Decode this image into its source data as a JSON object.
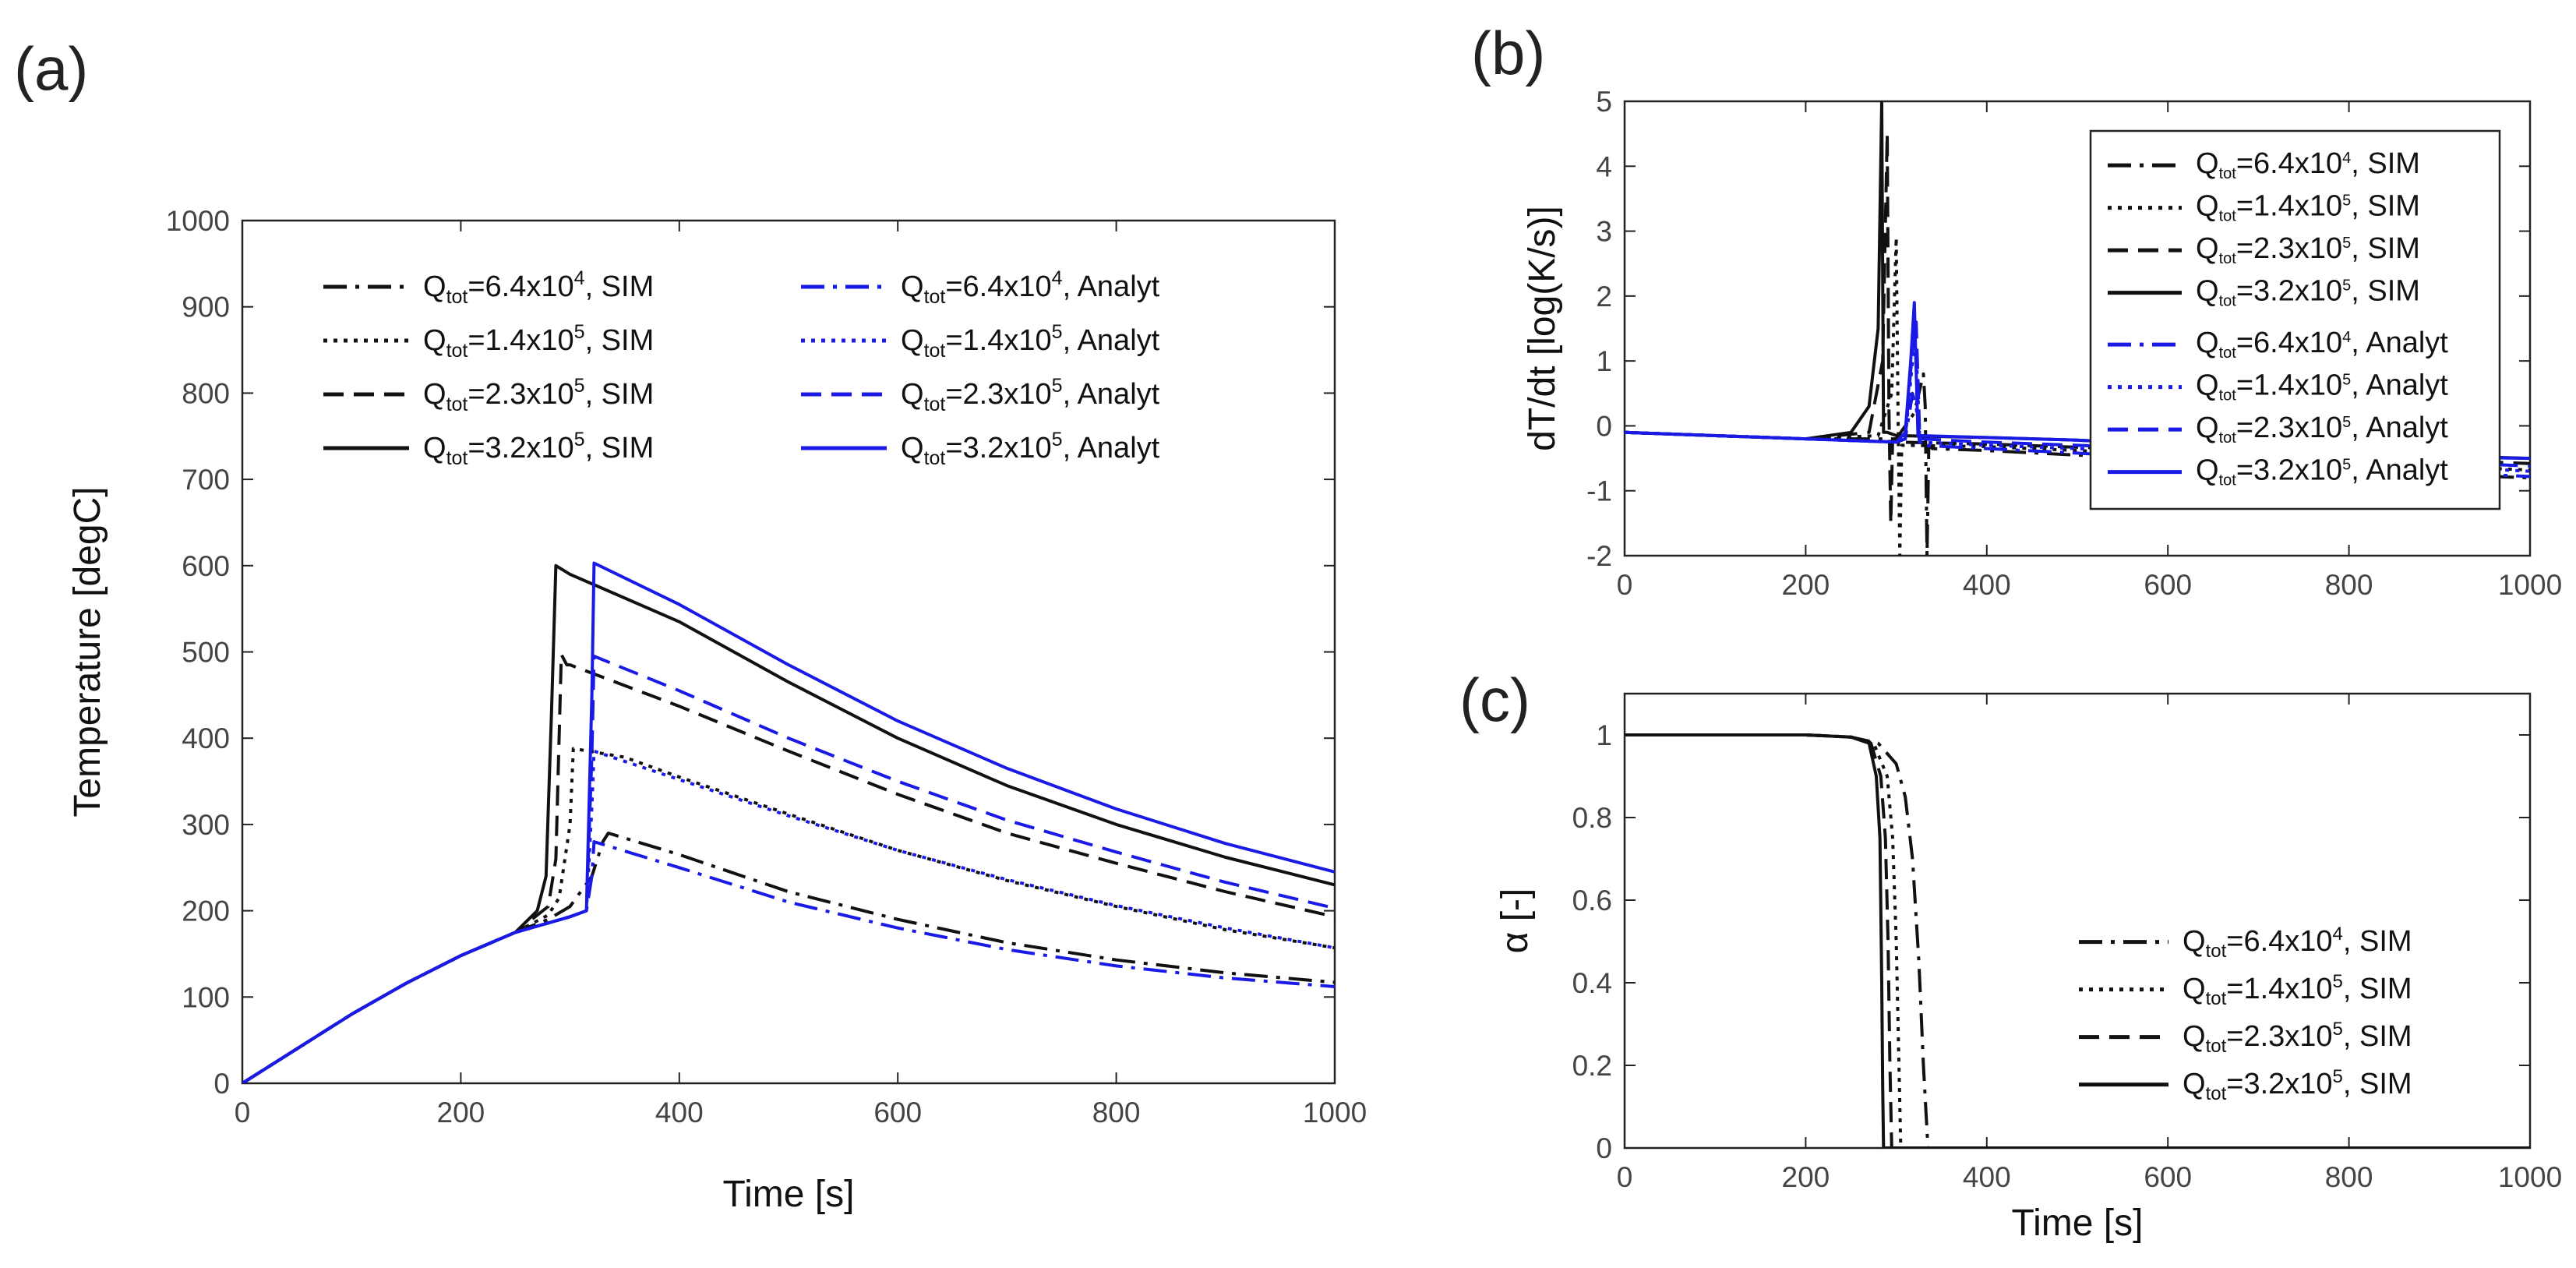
{
  "chart_data": [
    {
      "panel_label": "(a)",
      "type": "line",
      "xlabel": "Time [s]",
      "ylabel": "Temperature [degC]",
      "xlim": [
        0,
        1000
      ],
      "ylim": [
        0,
        1000
      ],
      "xticks": [
        "0",
        "200",
        "400",
        "600",
        "800",
        "1000"
      ],
      "yticks": [
        "0",
        "100",
        "200",
        "300",
        "400",
        "500",
        "600",
        "700",
        "800",
        "900",
        "1000"
      ],
      "grid": false,
      "legend_position": "top, two columns",
      "series": [
        {
          "name": "Q_tot=6.4x10^4, SIM",
          "color": "#111111",
          "style": "dashdot",
          "x": [
            0,
            50,
            100,
            150,
            200,
            250,
            280,
            300,
            320,
            330,
            335,
            400,
            500,
            600,
            700,
            800,
            900,
            1000
          ],
          "y": [
            0,
            40,
            80,
            116,
            148,
            175,
            190,
            205,
            240,
            280,
            290,
            265,
            222,
            190,
            163,
            143,
            128,
            117
          ]
        },
        {
          "name": "Q_tot=1.4x10^5, SIM",
          "color": "#111111",
          "style": "dotted",
          "x": [
            0,
            50,
            100,
            150,
            200,
            250,
            280,
            290,
            300,
            303,
            350,
            400,
            500,
            600,
            700,
            800,
            900,
            1000
          ],
          "y": [
            0,
            40,
            80,
            116,
            148,
            175,
            195,
            215,
            300,
            388,
            378,
            355,
            312,
            270,
            235,
            205,
            178,
            157
          ]
        },
        {
          "name": "Q_tot=2.3x10^5, SIM",
          "color": "#111111",
          "style": "dashed",
          "x": [
            0,
            50,
            100,
            150,
            200,
            250,
            280,
            287,
            292,
            297,
            300,
            400,
            500,
            600,
            700,
            800,
            900,
            1000
          ],
          "y": [
            0,
            40,
            80,
            116,
            148,
            175,
            205,
            260,
            497,
            485,
            485,
            437,
            385,
            335,
            290,
            255,
            222,
            193
          ]
        },
        {
          "name": "Q_tot=3.2x10^5, SIM",
          "color": "#111111",
          "style": "solid",
          "x": [
            0,
            50,
            100,
            150,
            200,
            250,
            270,
            278,
            283,
            287,
            300,
            400,
            500,
            600,
            700,
            800,
            900,
            1000
          ],
          "y": [
            0,
            40,
            80,
            116,
            148,
            175,
            200,
            240,
            430,
            600,
            590,
            535,
            465,
            400,
            345,
            300,
            262,
            230
          ]
        },
        {
          "name": "Q_tot=6.4x10^4, Analyt",
          "color": "#1a1ae6",
          "style": "dashdot",
          "x": [
            0,
            50,
            100,
            150,
            200,
            250,
            300,
            315,
            320,
            322,
            400,
            500,
            600,
            700,
            800,
            900,
            1000
          ],
          "y": [
            0,
            40,
            80,
            116,
            148,
            175,
            193,
            200,
            240,
            280,
            250,
            210,
            180,
            155,
            136,
            122,
            112
          ]
        },
        {
          "name": "Q_tot=1.4x10^5, Analyt",
          "color": "#1a1ae6",
          "style": "dotted",
          "x": [
            0,
            50,
            100,
            150,
            200,
            250,
            300,
            315,
            320,
            322,
            400,
            500,
            600,
            700,
            800,
            900,
            1000
          ],
          "y": [
            0,
            40,
            80,
            116,
            148,
            175,
            193,
            200,
            320,
            385,
            352,
            310,
            270,
            236,
            206,
            180,
            157
          ]
        },
        {
          "name": "Q_tot=2.3x10^5, Analyt",
          "color": "#1a1ae6",
          "style": "dashed",
          "x": [
            0,
            50,
            100,
            150,
            200,
            250,
            300,
            315,
            320,
            322,
            400,
            500,
            600,
            700,
            800,
            900,
            1000
          ],
          "y": [
            0,
            40,
            80,
            116,
            148,
            175,
            193,
            200,
            380,
            495,
            455,
            400,
            350,
            305,
            268,
            233,
            203
          ]
        },
        {
          "name": "Q_tot=3.2x10^5, Analyt",
          "color": "#1a1ae6",
          "style": "solid",
          "x": [
            0,
            50,
            100,
            150,
            200,
            250,
            300,
            315,
            320,
            322,
            400,
            500,
            600,
            700,
            800,
            900,
            1000
          ],
          "y": [
            0,
            40,
            80,
            116,
            148,
            175,
            193,
            200,
            450,
            603,
            555,
            485,
            420,
            365,
            318,
            278,
            245
          ]
        }
      ]
    },
    {
      "panel_label": "(b)",
      "type": "line",
      "xlabel": "",
      "ylabel": "dT/dt [log(K/s)]",
      "xlim": [
        0,
        1000
      ],
      "ylim": [
        -2,
        5
      ],
      "xticks": [
        "0",
        "200",
        "400",
        "600",
        "800",
        "1000"
      ],
      "yticks": [
        "-2",
        "-1",
        "0",
        "1",
        "2",
        "3",
        "4",
        "5"
      ],
      "grid": false,
      "legend_position": "top-right, boxed",
      "series": [
        {
          "name": "Q_tot=6.4x10^4, SIM",
          "color": "#111111",
          "style": "dashdot",
          "x": [
            0,
            200,
            300,
            320,
            330,
            332,
            334,
            336,
            340,
            400,
            500,
            600,
            700,
            800,
            900,
            1000
          ],
          "y": [
            -0.1,
            -0.2,
            -0.2,
            0.2,
            0.8,
            0.3,
            -2,
            -0.3,
            -0.35,
            -0.38,
            -0.45,
            -0.52,
            -0.6,
            -0.68,
            -0.75,
            -0.8
          ]
        },
        {
          "name": "Q_tot=1.4x10^5, SIM",
          "color": "#111111",
          "style": "dotted",
          "x": [
            0,
            200,
            280,
            295,
            300,
            302,
            304,
            306,
            310,
            400,
            500,
            600,
            700,
            800,
            900,
            1000
          ],
          "y": [
            -0.1,
            -0.2,
            -0.15,
            0.5,
            2.9,
            0.2,
            -2,
            -0.3,
            -0.3,
            -0.32,
            -0.38,
            -0.44,
            -0.5,
            -0.56,
            -0.62,
            -0.68
          ]
        },
        {
          "name": "Q_tot=2.3x10^5, SIM",
          "color": "#111111",
          "style": "dashed",
          "x": [
            0,
            200,
            270,
            285,
            290,
            292,
            294,
            296,
            300,
            400,
            500,
            600,
            700,
            800,
            900,
            1000
          ],
          "y": [
            -0.1,
            -0.2,
            -0.1,
            1.0,
            4.5,
            0.2,
            -1.5,
            -0.2,
            -0.25,
            -0.28,
            -0.33,
            -0.38,
            -0.43,
            -0.48,
            -0.53,
            -0.58
          ]
        },
        {
          "name": "Q_tot=3.2x10^5, SIM",
          "color": "#111111",
          "style": "solid",
          "x": [
            0,
            200,
            250,
            270,
            280,
            284,
            286,
            290,
            300,
            400,
            500,
            600,
            700,
            800,
            900,
            1000
          ],
          "y": [
            -0.1,
            -0.2,
            -0.1,
            0.3,
            1.5,
            5,
            -0.1,
            -0.1,
            -0.15,
            -0.18,
            -0.22,
            -0.28,
            -0.34,
            -0.4,
            -0.46,
            -0.5
          ]
        },
        {
          "name": "Q_tot=6.4x10^4, Analyt",
          "color": "#1a1ae6",
          "style": "dashdot",
          "x": [
            0,
            200,
            300,
            310,
            318,
            322,
            326,
            400,
            500,
            600,
            700,
            800,
            900,
            1000
          ],
          "y": [
            -0.1,
            -0.2,
            -0.25,
            -0.2,
            0.5,
            0.3,
            -0.3,
            -0.35,
            -0.42,
            -0.5,
            -0.58,
            -0.65,
            -0.72,
            -0.78
          ]
        },
        {
          "name": "Q_tot=1.4x10^5, Analyt",
          "color": "#1a1ae6",
          "style": "dotted",
          "x": [
            0,
            200,
            300,
            310,
            318,
            322,
            326,
            400,
            500,
            600,
            700,
            800,
            900,
            1000
          ],
          "y": [
            -0.1,
            -0.2,
            -0.25,
            -0.2,
            1.0,
            1.2,
            -0.25,
            -0.3,
            -0.35,
            -0.42,
            -0.5,
            -0.57,
            -0.63,
            -0.7
          ]
        },
        {
          "name": "Q_tot=2.3x10^5, Analyt",
          "color": "#1a1ae6",
          "style": "dashed",
          "x": [
            0,
            200,
            300,
            310,
            318,
            322,
            326,
            400,
            500,
            600,
            700,
            800,
            900,
            1000
          ],
          "y": [
            -0.1,
            -0.2,
            -0.25,
            -0.2,
            1.2,
            1.6,
            -0.2,
            -0.25,
            -0.3,
            -0.35,
            -0.42,
            -0.5,
            -0.56,
            -0.62
          ]
        },
        {
          "name": "Q_tot=3.2x10^5, Analyt",
          "color": "#1a1ae6",
          "style": "solid",
          "x": [
            0,
            200,
            300,
            310,
            316,
            320,
            324,
            400,
            500,
            600,
            700,
            800,
            900,
            1000
          ],
          "y": [
            -0.1,
            -0.2,
            -0.25,
            -0.1,
            1.0,
            1.9,
            -0.15,
            -0.18,
            -0.22,
            -0.28,
            -0.35,
            -0.42,
            -0.48,
            -0.5
          ]
        }
      ]
    },
    {
      "panel_label": "(c)",
      "type": "line",
      "xlabel": "Time [s]",
      "ylabel": "α [-]",
      "xlim": [
        0,
        1000
      ],
      "ylim": [
        0,
        1.1
      ],
      "xticks": [
        "0",
        "200",
        "400",
        "600",
        "800",
        "1000"
      ],
      "yticks": [
        "0",
        "0.2",
        "0.4",
        "0.6",
        "0.8",
        "1"
      ],
      "grid": false,
      "legend_position": "bottom-right",
      "series": [
        {
          "name": "Q_tot=6.4x10^4, SIM",
          "color": "#111111",
          "style": "dashdot",
          "x": [
            0,
            200,
            250,
            280,
            300,
            310,
            318,
            325,
            330,
            335,
            1000
          ],
          "y": [
            1,
            1,
            0.995,
            0.98,
            0.93,
            0.85,
            0.7,
            0.45,
            0.2,
            0,
            0
          ]
        },
        {
          "name": "Q_tot=1.4x10^5, SIM",
          "color": "#111111",
          "style": "dotted",
          "x": [
            0,
            200,
            250,
            275,
            290,
            296,
            300,
            303,
            305,
            1000
          ],
          "y": [
            1,
            1,
            0.995,
            0.98,
            0.9,
            0.75,
            0.5,
            0.2,
            0,
            0
          ]
        },
        {
          "name": "Q_tot=2.3x10^5, SIM",
          "color": "#111111",
          "style": "dashed",
          "x": [
            0,
            200,
            250,
            272,
            283,
            288,
            291,
            293,
            295,
            1000
          ],
          "y": [
            1,
            1,
            0.995,
            0.98,
            0.9,
            0.75,
            0.5,
            0.2,
            0,
            0
          ]
        },
        {
          "name": "Q_tot=3.2x10^5, SIM",
          "color": "#111111",
          "style": "solid",
          "x": [
            0,
            200,
            250,
            270,
            278,
            282,
            284,
            285,
            286,
            1000
          ],
          "y": [
            1,
            1,
            0.995,
            0.98,
            0.9,
            0.75,
            0.4,
            0.15,
            0,
            0
          ]
        }
      ]
    }
  ]
}
